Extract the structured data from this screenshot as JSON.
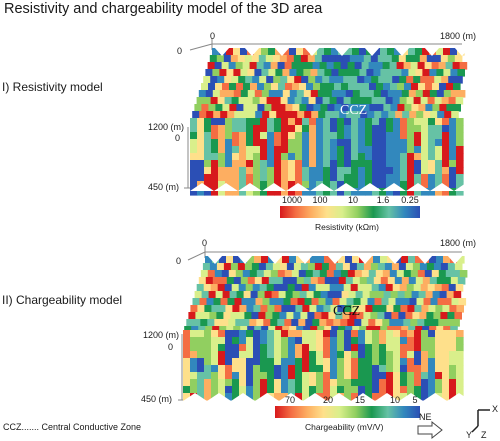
{
  "title": "Resistivity and chargeability model of the 3D area",
  "resistivity": {
    "section_label": "I)  Resistivity model",
    "axis_x_start": "0",
    "axis_x_end": "1800 (m)",
    "axis_y_top": "0",
    "axis_y_depth_top": "1200 (m)",
    "axis_y_depth_zero": "0",
    "axis_depth_bottom": "450 (m)",
    "ccz_label": "CCZ",
    "colorbar_ticks": [
      "1000",
      "100",
      "10",
      "1.6",
      "0.25"
    ],
    "colorbar_title": "Resistivity (kΩm)",
    "colorbar_colors": [
      "#d7191c",
      "#f46d43",
      "#fdae61",
      "#fee08b",
      "#d9ef8b",
      "#91cf60",
      "#1a9850",
      "#66c2a5",
      "#3288bd",
      "#2b4fb5"
    ]
  },
  "chargeability": {
    "section_label": "II) Chargeability model",
    "axis_x_start": "0",
    "axis_x_end": "1800 (m)",
    "axis_y_top": "0",
    "axis_y_depth_top": "1200 (m)",
    "axis_y_depth_zero": "0",
    "axis_depth_bottom": "450 (m)",
    "ccz_label": "CCZ",
    "colorbar_ticks": [
      "70",
      "20",
      "15",
      "10",
      "5"
    ],
    "colorbar_title": "Chargeability (mV/V)",
    "colorbar_colors": [
      "#d7191c",
      "#f46d43",
      "#fdae61",
      "#fee08b",
      "#d9ef8b",
      "#91cf60",
      "#1a9850",
      "#66c2a5",
      "#3288bd",
      "#2b4fb5"
    ]
  },
  "footnote": "CCZ....... Central Conductive Zone",
  "orientation": {
    "north_label": "NE",
    "x_label": "X",
    "y_label": "Y",
    "z_label": "Z"
  }
}
